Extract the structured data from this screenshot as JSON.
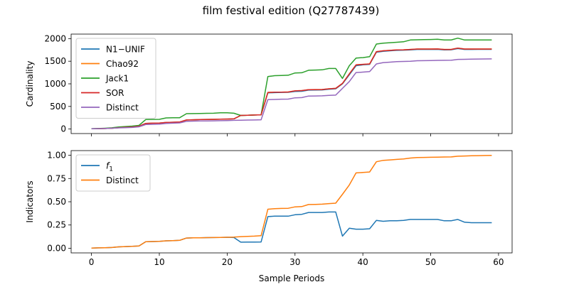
{
  "title": "film festival edition (Q27787439)",
  "chart_data": [
    {
      "type": "line",
      "ylabel": "Cardinality",
      "xlabel": "",
      "xlim": [
        -3,
        62
      ],
      "ylim": [
        -100,
        2100
      ],
      "xticks": [
        0,
        10,
        20,
        30,
        40,
        50,
        60
      ],
      "xtick_labels_shown": false,
      "yticks": [
        0,
        500,
        1000,
        1500,
        2000
      ],
      "ytick_labels": [
        "0",
        "500",
        "1000",
        "1500",
        "2000"
      ],
      "grid": false,
      "legend_position": "upper-left",
      "x": [
        0,
        1,
        2,
        3,
        4,
        5,
        6,
        7,
        8,
        9,
        10,
        11,
        12,
        13,
        14,
        15,
        16,
        17,
        18,
        19,
        20,
        21,
        22,
        23,
        24,
        25,
        26,
        27,
        28,
        29,
        30,
        31,
        32,
        33,
        34,
        35,
        36,
        37,
        38,
        39,
        40,
        41,
        42,
        43,
        44,
        45,
        46,
        47,
        48,
        49,
        50,
        51,
        52,
        53,
        54,
        55,
        56,
        57,
        58,
        59
      ],
      "series": [
        {
          "name": "N1−UNIF",
          "color": "#1f77b4",
          "values": [
            5,
            8,
            12,
            18,
            30,
            38,
            45,
            60,
            125,
            130,
            133,
            145,
            150,
            155,
            200,
            205,
            210,
            212,
            215,
            218,
            220,
            225,
            300,
            305,
            310,
            315,
            800,
            805,
            810,
            812,
            830,
            835,
            860,
            862,
            865,
            880,
            890,
            1000,
            1200,
            1400,
            1420,
            1430,
            1700,
            1720,
            1730,
            1740,
            1745,
            1750,
            1760,
            1760,
            1760,
            1762,
            1750,
            1752,
            1780,
            1760,
            1760,
            1762,
            1762,
            1762
          ]
        },
        {
          "name": "Chao92",
          "color": "#ff7f0e",
          "values": [
            5,
            8,
            12,
            18,
            30,
            38,
            45,
            60,
            125,
            130,
            133,
            145,
            150,
            155,
            200,
            205,
            210,
            212,
            215,
            218,
            220,
            225,
            300,
            305,
            310,
            315,
            810,
            815,
            815,
            820,
            845,
            850,
            870,
            872,
            875,
            890,
            900,
            1010,
            1220,
            1420,
            1430,
            1440,
            1710,
            1730,
            1740,
            1750,
            1752,
            1760,
            1770,
            1770,
            1770,
            1772,
            1760,
            1760,
            1790,
            1770,
            1770,
            1770,
            1770,
            1770
          ]
        },
        {
          "name": "Jack1",
          "color": "#2ca02c",
          "values": [
            8,
            12,
            18,
            28,
            45,
            55,
            65,
            80,
            210,
            212,
            215,
            245,
            250,
            250,
            340,
            342,
            345,
            348,
            350,
            360,
            360,
            350,
            300,
            305,
            310,
            315,
            1160,
            1180,
            1185,
            1190,
            1240,
            1245,
            1300,
            1305,
            1310,
            1340,
            1340,
            1120,
            1400,
            1570,
            1580,
            1600,
            1880,
            1900,
            1910,
            1920,
            1930,
            1970,
            1975,
            1978,
            1980,
            1985,
            1970,
            1970,
            2010,
            1970,
            1970,
            1970,
            1970,
            1970
          ]
        },
        {
          "name": "SOR",
          "color": "#d62728",
          "values": [
            5,
            8,
            12,
            18,
            30,
            38,
            45,
            60,
            125,
            130,
            133,
            145,
            150,
            155,
            200,
            205,
            210,
            212,
            215,
            218,
            220,
            225,
            300,
            305,
            310,
            315,
            810,
            815,
            815,
            820,
            845,
            850,
            870,
            872,
            875,
            890,
            900,
            1010,
            1220,
            1420,
            1430,
            1440,
            1710,
            1730,
            1740,
            1750,
            1752,
            1760,
            1770,
            1770,
            1770,
            1772,
            1760,
            1760,
            1790,
            1770,
            1770,
            1770,
            1770,
            1770
          ]
        },
        {
          "name": "Distinct",
          "color": "#9467bd",
          "values": [
            5,
            8,
            12,
            18,
            25,
            30,
            35,
            50,
            100,
            105,
            108,
            125,
            130,
            135,
            170,
            175,
            178,
            180,
            182,
            185,
            188,
            192,
            195,
            198,
            200,
            205,
            650,
            655,
            660,
            662,
            690,
            695,
            730,
            732,
            735,
            745,
            750,
            900,
            1050,
            1250,
            1260,
            1270,
            1440,
            1470,
            1480,
            1490,
            1495,
            1500,
            1510,
            1512,
            1515,
            1518,
            1520,
            1522,
            1540,
            1542,
            1545,
            1548,
            1550,
            1552
          ]
        }
      ]
    },
    {
      "type": "line",
      "ylabel": "Indicators",
      "xlabel": "Sample Periods",
      "xlim": [
        -3,
        62
      ],
      "ylim": [
        -0.05,
        1.05
      ],
      "xticks": [
        0,
        10,
        20,
        30,
        40,
        50,
        60
      ],
      "xtick_labels": [
        "0",
        "10",
        "20",
        "30",
        "40",
        "50",
        "60"
      ],
      "yticks": [
        0,
        0.25,
        0.5,
        0.75,
        1.0
      ],
      "ytick_labels": [
        "0.00",
        "0.25",
        "0.50",
        "0.75",
        "1.00"
      ],
      "grid": false,
      "legend_position": "upper-left",
      "x": [
        0,
        1,
        2,
        3,
        4,
        5,
        6,
        7,
        8,
        9,
        10,
        11,
        12,
        13,
        14,
        15,
        16,
        17,
        18,
        19,
        20,
        21,
        22,
        23,
        24,
        25,
        26,
        27,
        28,
        29,
        30,
        31,
        32,
        33,
        34,
        35,
        36,
        37,
        38,
        39,
        40,
        41,
        42,
        43,
        44,
        45,
        46,
        47,
        48,
        49,
        50,
        51,
        52,
        53,
        54,
        55,
        56,
        57,
        58,
        59
      ],
      "series": [
        {
          "name": "f1",
          "color": "#1f77b4",
          "values": [
            0.002,
            0.004,
            0.006,
            0.008,
            0.015,
            0.018,
            0.02,
            0.025,
            0.07,
            0.072,
            0.074,
            0.08,
            0.082,
            0.085,
            0.11,
            0.112,
            0.113,
            0.114,
            0.115,
            0.116,
            0.118,
            0.115,
            0.065,
            0.066,
            0.067,
            0.068,
            0.34,
            0.345,
            0.345,
            0.345,
            0.36,
            0.365,
            0.385,
            0.385,
            0.385,
            0.39,
            0.39,
            0.13,
            0.215,
            0.205,
            0.205,
            0.21,
            0.3,
            0.29,
            0.295,
            0.295,
            0.3,
            0.31,
            0.31,
            0.31,
            0.31,
            0.31,
            0.295,
            0.295,
            0.31,
            0.28,
            0.275,
            0.275,
            0.275,
            0.275
          ]
        },
        {
          "name": "Distinct",
          "color": "#ff7f0e",
          "values": [
            0.002,
            0.004,
            0.006,
            0.008,
            0.015,
            0.018,
            0.02,
            0.025,
            0.07,
            0.072,
            0.074,
            0.08,
            0.082,
            0.085,
            0.11,
            0.112,
            0.113,
            0.114,
            0.115,
            0.116,
            0.118,
            0.12,
            0.125,
            0.128,
            0.13,
            0.135,
            0.42,
            0.425,
            0.428,
            0.43,
            0.445,
            0.448,
            0.47,
            0.472,
            0.474,
            0.48,
            0.485,
            0.58,
            0.68,
            0.81,
            0.815,
            0.82,
            0.93,
            0.945,
            0.95,
            0.955,
            0.96,
            0.97,
            0.975,
            0.977,
            0.978,
            0.98,
            0.981,
            0.982,
            0.99,
            0.992,
            0.994,
            0.996,
            0.997,
            0.998
          ]
        }
      ]
    }
  ]
}
